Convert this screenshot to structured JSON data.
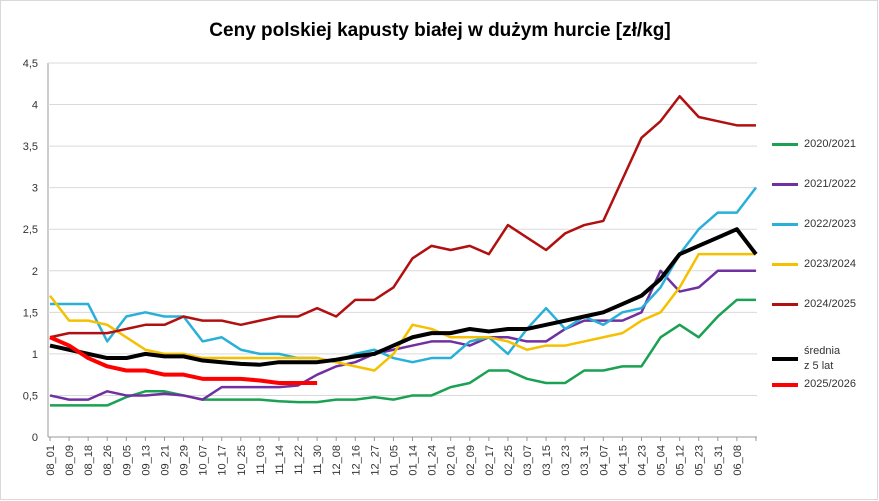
{
  "chart_data": {
    "type": "line",
    "title": "Ceny polskiej kapusty białej w dużym hurcie [zł/kg]",
    "categories": [
      "08_01",
      "08_09",
      "08_18",
      "08_26",
      "09_05",
      "09_13",
      "09_21",
      "09_29",
      "10_07",
      "10_17",
      "10_25",
      "11_03",
      "11_14",
      "11_22",
      "11_30",
      "12_08",
      "12_16",
      "12_27",
      "01_05",
      "01_14",
      "01_24",
      "02_01",
      "02_09",
      "02_17",
      "02_25",
      "03_07",
      "03_15",
      "03_23",
      "03_31",
      "04_07",
      "04_15",
      "04_23",
      "05_04",
      "05_12",
      "05_23",
      "05_31",
      "06_08",
      null
    ],
    "ylim": [
      0,
      4.5
    ],
    "yticks": [
      0,
      {
        "value": 0.5,
        "label": "0,5"
      },
      1,
      {
        "value": 1.5,
        "label": "1,5"
      },
      2,
      {
        "value": 2.5,
        "label": "2,5"
      },
      3,
      {
        "value": 3.5,
        "label": "3,5"
      },
      4,
      {
        "value": 4.5,
        "label": "4,5"
      }
    ],
    "grid": true,
    "legend": "right",
    "series": [
      {
        "name": "2020/2021",
        "color": "#1aa152",
        "width": 2.5,
        "values": [
          0.38,
          0.38,
          0.38,
          0.38,
          0.48,
          0.55,
          0.55,
          0.5,
          0.45,
          0.45,
          0.45,
          0.45,
          0.43,
          0.42,
          0.42,
          0.45,
          0.45,
          0.48,
          0.45,
          0.5,
          0.5,
          0.6,
          0.65,
          0.8,
          0.8,
          0.7,
          0.65,
          0.65,
          0.8,
          0.8,
          0.85,
          0.85,
          1.2,
          1.35,
          1.2,
          1.45,
          1.65,
          1.65
        ]
      },
      {
        "name": "2021/2022",
        "color": "#7030a0",
        "width": 2.5,
        "values": [
          0.5,
          0.45,
          0.45,
          0.55,
          0.5,
          0.5,
          0.52,
          0.5,
          0.45,
          0.6,
          0.6,
          0.6,
          0.6,
          0.62,
          0.75,
          0.85,
          0.9,
          1.0,
          1.05,
          1.1,
          1.15,
          1.15,
          1.1,
          1.2,
          1.2,
          1.15,
          1.15,
          1.3,
          1.4,
          1.4,
          1.4,
          1.5,
          2.0,
          1.75,
          1.8,
          2.0,
          2.0,
          2.0
        ]
      },
      {
        "name": "2022/2023",
        "color": "#29b0d8",
        "width": 2.5,
        "values": [
          1.6,
          1.6,
          1.6,
          1.15,
          1.45,
          1.5,
          1.45,
          1.45,
          1.15,
          1.2,
          1.05,
          1.0,
          1.0,
          0.95,
          0.95,
          0.9,
          1.0,
          1.05,
          0.95,
          0.9,
          0.95,
          0.95,
          1.15,
          1.2,
          1.0,
          1.3,
          1.55,
          1.3,
          1.45,
          1.35,
          1.5,
          1.55,
          1.8,
          2.2,
          2.5,
          2.7,
          2.7,
          3.0
        ]
      },
      {
        "name": "2023/2024",
        "color": "#f5c000",
        "width": 2.5,
        "values": [
          1.7,
          1.4,
          1.4,
          1.35,
          1.2,
          1.05,
          1.0,
          1.0,
          0.95,
          0.95,
          0.95,
          0.95,
          0.95,
          0.95,
          0.95,
          0.9,
          0.85,
          0.8,
          1.0,
          1.35,
          1.3,
          1.2,
          1.2,
          1.2,
          1.15,
          1.05,
          1.1,
          1.1,
          1.15,
          1.2,
          1.25,
          1.4,
          1.5,
          1.8,
          2.2,
          2.2,
          2.2,
          2.2
        ]
      },
      {
        "name": "2024/2025",
        "color": "#b01010",
        "width": 2.5,
        "values": [
          1.2,
          1.25,
          1.25,
          1.25,
          1.3,
          1.35,
          1.35,
          1.45,
          1.4,
          1.4,
          1.35,
          1.4,
          1.45,
          1.45,
          1.55,
          1.45,
          1.65,
          1.65,
          1.8,
          2.15,
          2.3,
          2.25,
          2.3,
          2.2,
          2.55,
          2.4,
          2.25,
          2.45,
          2.55,
          2.6,
          3.1,
          3.6,
          3.8,
          4.1,
          3.85,
          3.8,
          3.75,
          3.75
        ]
      },
      {
        "name": "średnia z 5 lat",
        "color": "#000000",
        "width": 4,
        "values": [
          1.1,
          1.05,
          1.0,
          0.95,
          0.95,
          1.0,
          0.97,
          0.97,
          0.92,
          0.9,
          0.88,
          0.87,
          0.9,
          0.9,
          0.9,
          0.93,
          0.97,
          1.0,
          1.1,
          1.2,
          1.25,
          1.25,
          1.3,
          1.27,
          1.3,
          1.3,
          1.35,
          1.4,
          1.45,
          1.5,
          1.6,
          1.7,
          1.9,
          2.2,
          2.3,
          2.4,
          2.5,
          2.2
        ]
      },
      {
        "name": "2025/2026",
        "color": "#ff0000",
        "width": 4,
        "values": [
          1.2,
          1.1,
          0.95,
          0.85,
          0.8,
          0.8,
          0.75,
          0.75,
          0.7,
          0.7,
          0.7,
          0.68,
          0.65,
          0.65,
          0.65,
          null,
          null,
          null,
          null,
          null,
          null,
          null,
          null,
          null,
          null,
          null,
          null,
          null,
          null,
          null,
          null,
          null,
          null,
          null,
          null,
          null,
          null,
          null
        ]
      }
    ]
  }
}
